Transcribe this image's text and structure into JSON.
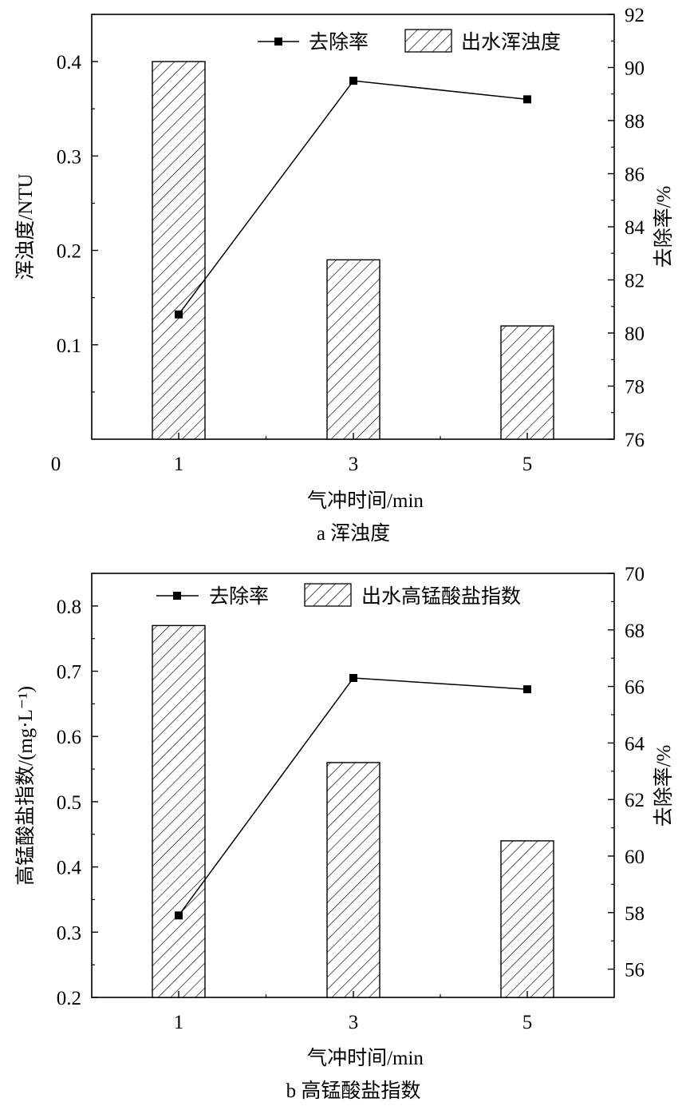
{
  "chart_data": [
    {
      "type": "bar+line",
      "panel_label": "a",
      "caption": "a 浑浊度",
      "xlabel": "气冲时间/min",
      "categories": [
        "1",
        "3",
        "5"
      ],
      "ylabel_left": "浑浊度/NTU",
      "ylabel_right": "去除率/%",
      "ylim_left": [
        0,
        0.45
      ],
      "ylim_right": [
        76,
        92
      ],
      "yticks_left": [
        0.1,
        0.2,
        0.3,
        0.4
      ],
      "yticks_left_labels": [
        "0.1",
        "0.2",
        "0.3",
        "0.4"
      ],
      "origin_label": "0",
      "yticks_right": [
        76,
        78,
        80,
        82,
        84,
        86,
        88,
        90,
        92
      ],
      "yticks_right_labels": [
        "76",
        "78",
        "80",
        "82",
        "84",
        "86",
        "88",
        "90",
        "92"
      ],
      "series": [
        {
          "name": "出水浑浊度",
          "kind": "bar",
          "axis": "left",
          "pattern": "hatch",
          "values": [
            0.4,
            0.19,
            0.12
          ]
        },
        {
          "name": "去除率",
          "kind": "line",
          "axis": "right",
          "marker": "square",
          "values": [
            80.7,
            89.5,
            88.8
          ]
        }
      ],
      "legend": {
        "line_label": "去除率",
        "bar_label": "出水浑浊度",
        "placement": "top-right"
      }
    },
    {
      "type": "bar+line",
      "panel_label": "b",
      "caption": "b 高锰酸盐指数",
      "xlabel": "气冲时间/min",
      "categories": [
        "1",
        "3",
        "5"
      ],
      "ylabel_left": "高锰酸盐指数/(mg·L⁻¹)",
      "ylabel_right": "去除率/%",
      "ylim_left": [
        0.2,
        0.85
      ],
      "ylim_right": [
        55,
        70
      ],
      "yticks_left": [
        0.2,
        0.3,
        0.4,
        0.5,
        0.6,
        0.7,
        0.8
      ],
      "yticks_left_labels": [
        "0.2",
        "0.3",
        "0.4",
        "0.5",
        "0.6",
        "0.7",
        "0.8"
      ],
      "yticks_right": [
        56,
        58,
        60,
        62,
        64,
        66,
        68,
        70
      ],
      "yticks_right_labels": [
        "56",
        "58",
        "60",
        "62",
        "64",
        "66",
        "68",
        "70"
      ],
      "series": [
        {
          "name": "出水高锰酸盐指数",
          "kind": "bar",
          "axis": "left",
          "pattern": "hatch",
          "values": [
            0.77,
            0.56,
            0.44
          ]
        },
        {
          "name": "去除率",
          "kind": "line",
          "axis": "right",
          "marker": "square",
          "values": [
            57.9,
            66.3,
            65.9
          ]
        }
      ],
      "legend": {
        "line_label": "去除率",
        "bar_label": "出水高锰酸盐指数",
        "placement": "top-right"
      }
    }
  ]
}
